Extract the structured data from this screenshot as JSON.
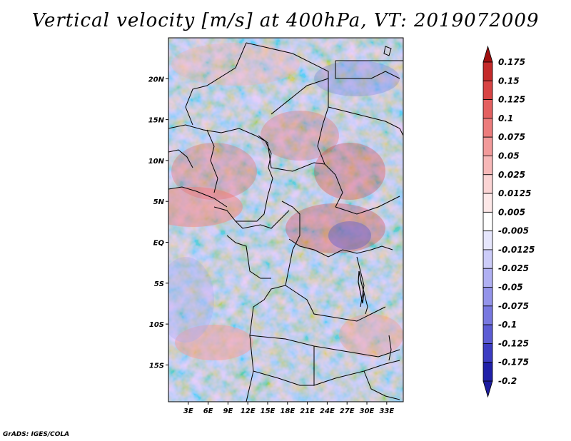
{
  "title": "Vertical velocity [m/s] at 400hPa, VT: 2019072009",
  "credit": "GrADS: IGES/COLA",
  "map": {
    "lon_range": [
      0,
      35.5
    ],
    "lat_range": [
      -19.5,
      25
    ],
    "lat_ticks": [
      {
        "value": 20,
        "label": "20N"
      },
      {
        "value": 15,
        "label": "15N"
      },
      {
        "value": 10,
        "label": "10N"
      },
      {
        "value": 5,
        "label": "5N"
      },
      {
        "value": 0,
        "label": "EQ"
      },
      {
        "value": -5,
        "label": "5S"
      },
      {
        "value": -10,
        "label": "10S"
      },
      {
        "value": -15,
        "label": "15S"
      }
    ],
    "lon_ticks": [
      {
        "value": 3,
        "label": "3E"
      },
      {
        "value": 6,
        "label": "6E"
      },
      {
        "value": 9,
        "label": "9E"
      },
      {
        "value": 12,
        "label": "12E"
      },
      {
        "value": 15,
        "label": "15E"
      },
      {
        "value": 18,
        "label": "18E"
      },
      {
        "value": 21,
        "label": "21E"
      },
      {
        "value": 24,
        "label": "24E"
      },
      {
        "value": 27,
        "label": "27E"
      },
      {
        "value": 30,
        "label": "30E"
      },
      {
        "value": 33,
        "label": "33E"
      }
    ]
  },
  "colorbar": {
    "levels": [
      {
        "label": "0.175",
        "color": "#b01216"
      },
      {
        "label": "0.15",
        "color": "#c42a2a"
      },
      {
        "label": "0.125",
        "color": "#d84444"
      },
      {
        "label": "0.1",
        "color": "#e46060"
      },
      {
        "label": "0.075",
        "color": "#ec7c7c"
      },
      {
        "label": "0.05",
        "color": "#f29a9a"
      },
      {
        "label": "0.025",
        "color": "#f7b8b8"
      },
      {
        "label": "0.0125",
        "color": "#fbd4d4"
      },
      {
        "label": "0.005",
        "color": "#fde8e8"
      },
      {
        "label": "-0.005",
        "color": "#ffffff"
      },
      {
        "label": "-0.0125",
        "color": "#e6e6fc"
      },
      {
        "label": "-0.025",
        "color": "#ccccf8"
      },
      {
        "label": "-0.05",
        "color": "#b0b0f2"
      },
      {
        "label": "-0.075",
        "color": "#9494ea"
      },
      {
        "label": "-0.1",
        "color": "#7878e0"
      },
      {
        "label": "-0.125",
        "color": "#5c5cd4"
      },
      {
        "label": "-0.175",
        "color": "#3c3cc2"
      },
      {
        "label": "-0.2",
        "color": "#2020a8"
      }
    ],
    "top_color": "#a01010",
    "bottom_color": "#1c1ca0"
  },
  "colors": {
    "border": "#000000",
    "field_mid": "#d8d8f4"
  }
}
